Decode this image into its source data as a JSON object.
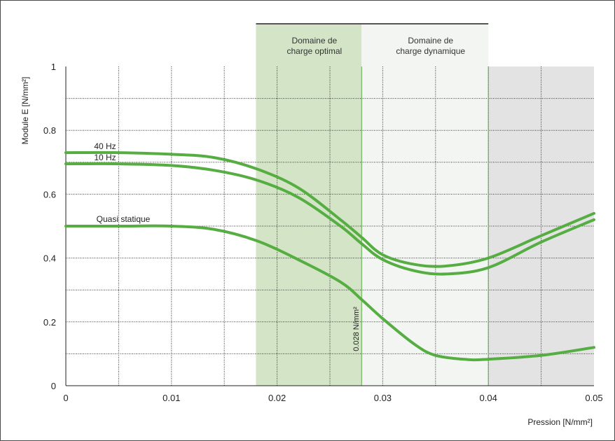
{
  "chart_data": {
    "type": "line",
    "xlabel": "Pression [N/mm²]",
    "ylabel": "Module E [N/mm²]",
    "xlim": [
      0,
      0.05
    ],
    "ylim": [
      0,
      1
    ],
    "x_ticks": [
      "0",
      "0.01",
      "0.02",
      "0.03",
      "0.04",
      "0.05"
    ],
    "y_ticks": [
      "0",
      "0.2",
      "0.4",
      "0.6",
      "0.8",
      "1"
    ],
    "grid": "dotted",
    "zones": [
      {
        "label_line1": "Domaine de",
        "label_line2": "charge optimal",
        "x_start": 0.018,
        "x_end": 0.028,
        "color": "#d3e5c6"
      },
      {
        "label_line1": "Domaine de",
        "label_line2": "charge dynamique",
        "x_start": 0.028,
        "x_end": 0.04,
        "color": "#f3f5f3"
      },
      {
        "label_line1": "",
        "label_line2": "",
        "x_start": 0.04,
        "x_end": 0.05,
        "color": "#e3e3e3"
      }
    ],
    "marker": {
      "x": 0.028,
      "label": "0.028 N/mm²"
    },
    "series": [
      {
        "name": "40 Hz",
        "color": "#56ad42",
        "points": [
          [
            0,
            0.73
          ],
          [
            0.005,
            0.73
          ],
          [
            0.01,
            0.725
          ],
          [
            0.014,
            0.715
          ],
          [
            0.018,
            0.68
          ],
          [
            0.022,
            0.62
          ],
          [
            0.026,
            0.52
          ],
          [
            0.028,
            0.465
          ],
          [
            0.03,
            0.41
          ],
          [
            0.033,
            0.38
          ],
          [
            0.036,
            0.375
          ],
          [
            0.04,
            0.4
          ],
          [
            0.045,
            0.47
          ],
          [
            0.05,
            0.54
          ]
        ]
      },
      {
        "name": "10 Hz",
        "color": "#56ad42",
        "points": [
          [
            0,
            0.695
          ],
          [
            0.005,
            0.695
          ],
          [
            0.01,
            0.69
          ],
          [
            0.014,
            0.675
          ],
          [
            0.018,
            0.645
          ],
          [
            0.022,
            0.59
          ],
          [
            0.026,
            0.5
          ],
          [
            0.028,
            0.445
          ],
          [
            0.03,
            0.395
          ],
          [
            0.033,
            0.36
          ],
          [
            0.036,
            0.35
          ],
          [
            0.04,
            0.37
          ],
          [
            0.045,
            0.45
          ],
          [
            0.05,
            0.52
          ]
        ]
      },
      {
        "name": "Quasi statique",
        "color": "#56ad42",
        "points": [
          [
            0,
            0.5
          ],
          [
            0.005,
            0.5
          ],
          [
            0.01,
            0.5
          ],
          [
            0.014,
            0.49
          ],
          [
            0.018,
            0.455
          ],
          [
            0.022,
            0.395
          ],
          [
            0.026,
            0.325
          ],
          [
            0.028,
            0.27
          ],
          [
            0.03,
            0.21
          ],
          [
            0.033,
            0.13
          ],
          [
            0.035,
            0.095
          ],
          [
            0.038,
            0.082
          ],
          [
            0.04,
            0.083
          ],
          [
            0.045,
            0.095
          ],
          [
            0.05,
            0.12
          ]
        ]
      }
    ]
  }
}
